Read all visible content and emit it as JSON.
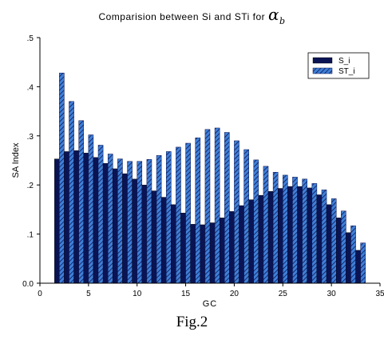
{
  "title": {
    "text": "Comparision between Si and STi for",
    "symbol": "α",
    "subscript": "b"
  },
  "caption": "Fig.2",
  "colors": {
    "si_fill": "#0a1454",
    "sti_fill": "#3f80d8",
    "sti_hatch": "#0a1454",
    "axis": "#000000"
  },
  "chart_data": {
    "type": "bar",
    "xlabel": "GC",
    "ylabel": "SA Index",
    "xlim": [
      0,
      35
    ],
    "ylim": [
      0,
      0.5
    ],
    "x_ticks": [
      "0",
      "5",
      "10",
      "15",
      "20",
      "25",
      "30",
      "35"
    ],
    "y_ticks": [
      "0.0",
      ".1",
      ".2",
      ".3",
      ".4",
      ".5"
    ],
    "legend_position": "top-right",
    "grid": false,
    "x": [
      2,
      3,
      4,
      5,
      6,
      7,
      8,
      9,
      10,
      11,
      12,
      13,
      14,
      15,
      16,
      17,
      18,
      19,
      20,
      21,
      22,
      23,
      24,
      25,
      26,
      27,
      28,
      29,
      30,
      31,
      32,
      33
    ],
    "series": [
      {
        "name": "S_i",
        "values": [
          0.253,
          0.268,
          0.27,
          0.265,
          0.256,
          0.244,
          0.233,
          0.223,
          0.212,
          0.2,
          0.188,
          0.175,
          0.16,
          0.143,
          0.12,
          0.119,
          0.123,
          0.133,
          0.146,
          0.158,
          0.17,
          0.179,
          0.187,
          0.193,
          0.197,
          0.197,
          0.194,
          0.18,
          0.16,
          0.133,
          0.103,
          0.067
        ]
      },
      {
        "name": "ST_i",
        "values": [
          0.428,
          0.37,
          0.331,
          0.302,
          0.281,
          0.263,
          0.253,
          0.248,
          0.248,
          0.252,
          0.26,
          0.268,
          0.277,
          0.285,
          0.296,
          0.313,
          0.316,
          0.307,
          0.29,
          0.272,
          0.251,
          0.238,
          0.226,
          0.22,
          0.216,
          0.212,
          0.203,
          0.19,
          0.172,
          0.147,
          0.117,
          0.082
        ]
      }
    ]
  }
}
